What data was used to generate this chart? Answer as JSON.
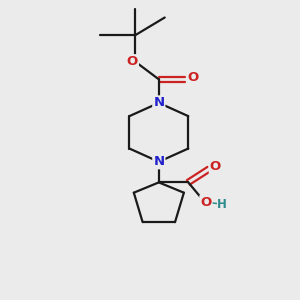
{
  "bg_color": "#ebebeb",
  "bond_color": "#1a1a1a",
  "N_color": "#2222cc",
  "O_color": "#cc2222",
  "OH_color": "#2e8b8b",
  "line_width": 1.6,
  "figsize": [
    3.0,
    3.0
  ],
  "dpi": 100,
  "xlim": [
    0,
    10
  ],
  "ylim": [
    0,
    10
  ]
}
